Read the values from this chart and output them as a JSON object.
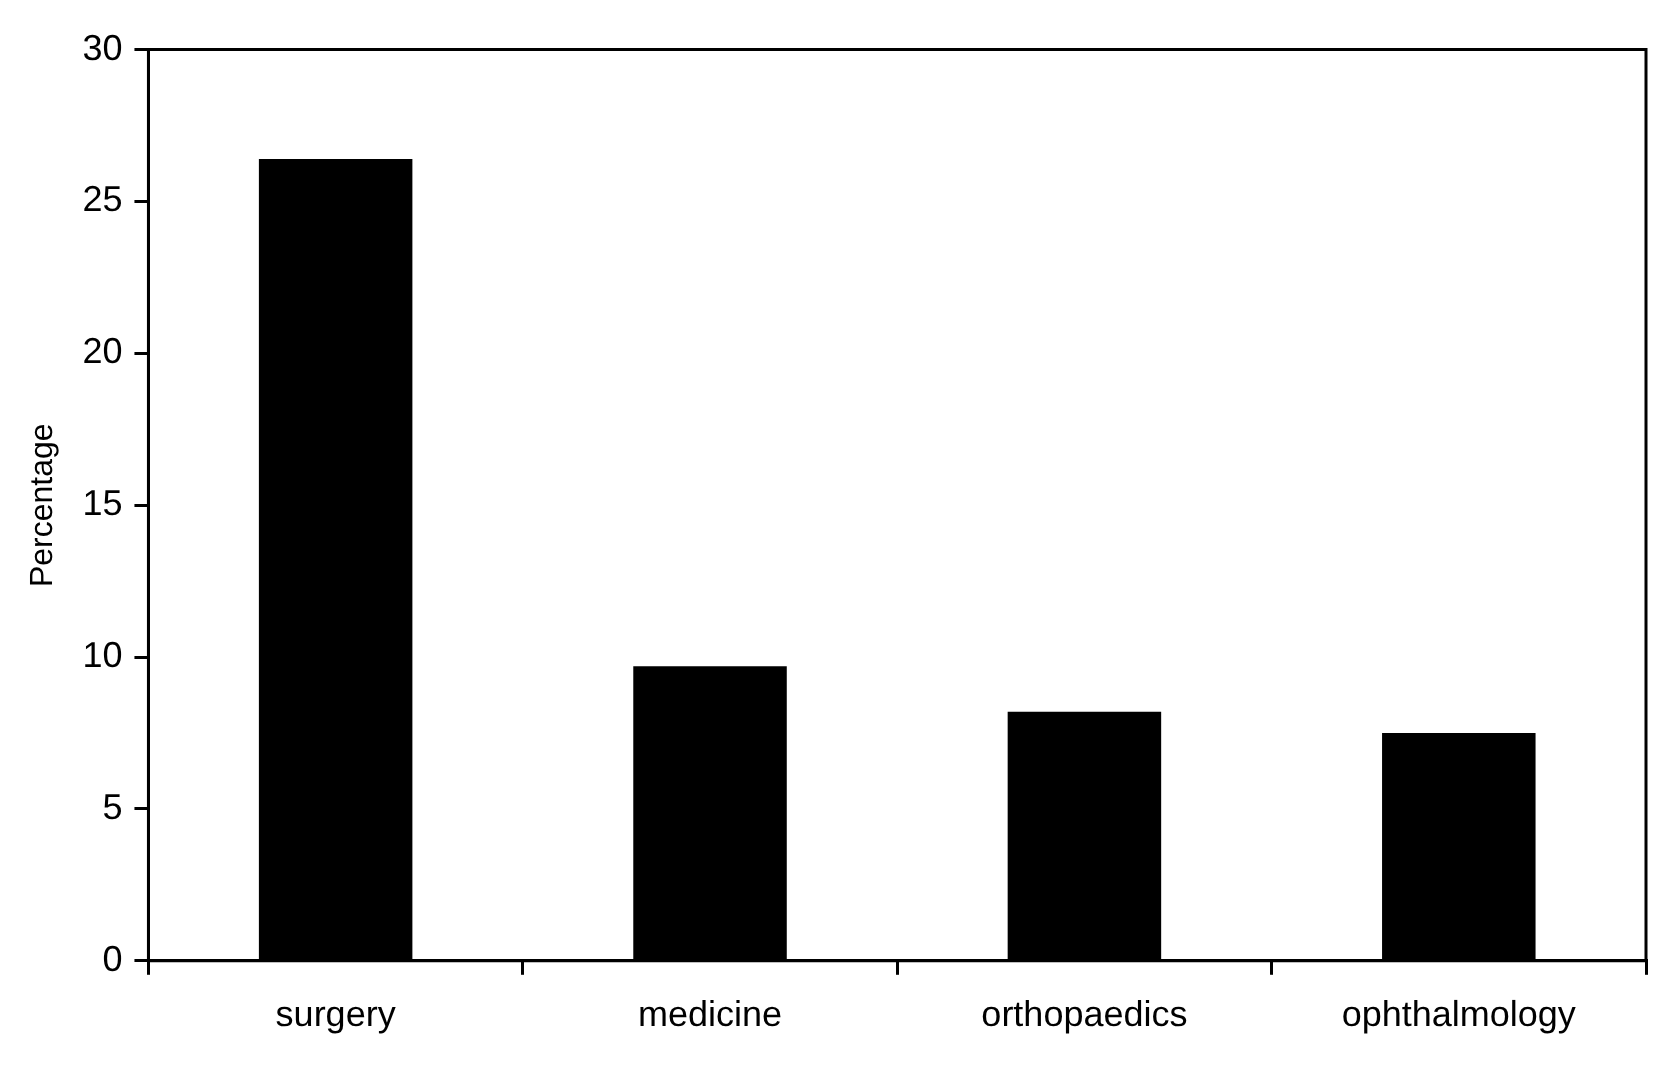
{
  "chart_data": {
    "type": "bar",
    "ylabel": "Percentage",
    "categories": [
      "surgery",
      "medicine",
      "orthopaedics",
      "ophthalmology"
    ],
    "values": [
      26.4,
      9.7,
      8.2,
      7.5
    ],
    "color": "#000000",
    "ylim": [
      0,
      30
    ],
    "yticks": [
      0,
      5,
      10,
      15,
      20,
      25,
      30
    ],
    "grid": false,
    "legend": false
  }
}
